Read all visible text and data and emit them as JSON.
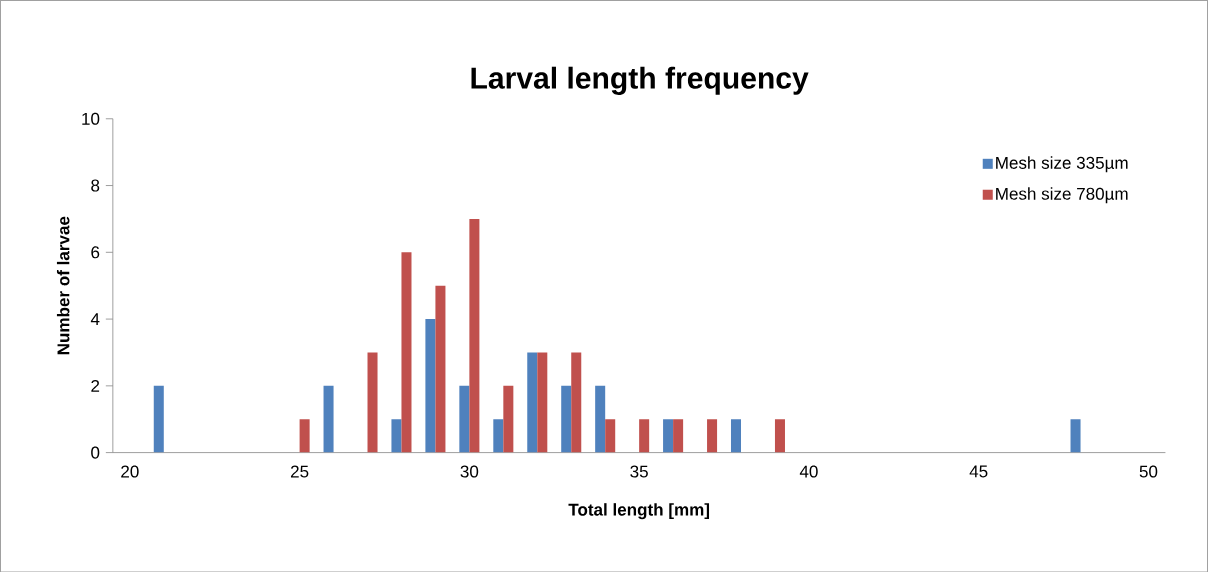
{
  "chart_data": {
    "type": "bar",
    "title": "Larval length frequency",
    "xlabel": "Total length [mm]",
    "ylabel": "Number of larvae",
    "categories": [
      "20",
      null,
      null,
      null,
      null,
      "25",
      null,
      null,
      null,
      null,
      "30",
      null,
      null,
      null,
      null,
      "35",
      null,
      null,
      null,
      null,
      "40",
      null,
      null,
      null,
      null,
      "45",
      null,
      null,
      null,
      null,
      "50"
    ],
    "series": [
      {
        "name": "Mesh size 335µm",
        "color": "#4f81bd",
        "values": [
          0,
          2,
          0,
          0,
          0,
          0,
          2,
          0,
          1,
          4,
          2,
          1,
          3,
          2,
          2,
          0,
          1,
          0,
          1,
          0,
          0,
          0,
          0,
          0,
          0,
          0,
          0,
          0,
          1,
          0,
          0
        ]
      },
      {
        "name": "Mesh size 780µm",
        "color": "#c0504d",
        "values": [
          0,
          0,
          0,
          0,
          0,
          1,
          0,
          3,
          6,
          5,
          7,
          2,
          3,
          3,
          1,
          1,
          1,
          1,
          0,
          1,
          0,
          0,
          0,
          0,
          0,
          0,
          0,
          0,
          0,
          0,
          0
        ]
      }
    ],
    "ylim": [
      0,
      10
    ],
    "yticks": [
      0,
      2,
      4,
      6,
      8,
      10
    ],
    "grid": false,
    "legend": "top right"
  }
}
